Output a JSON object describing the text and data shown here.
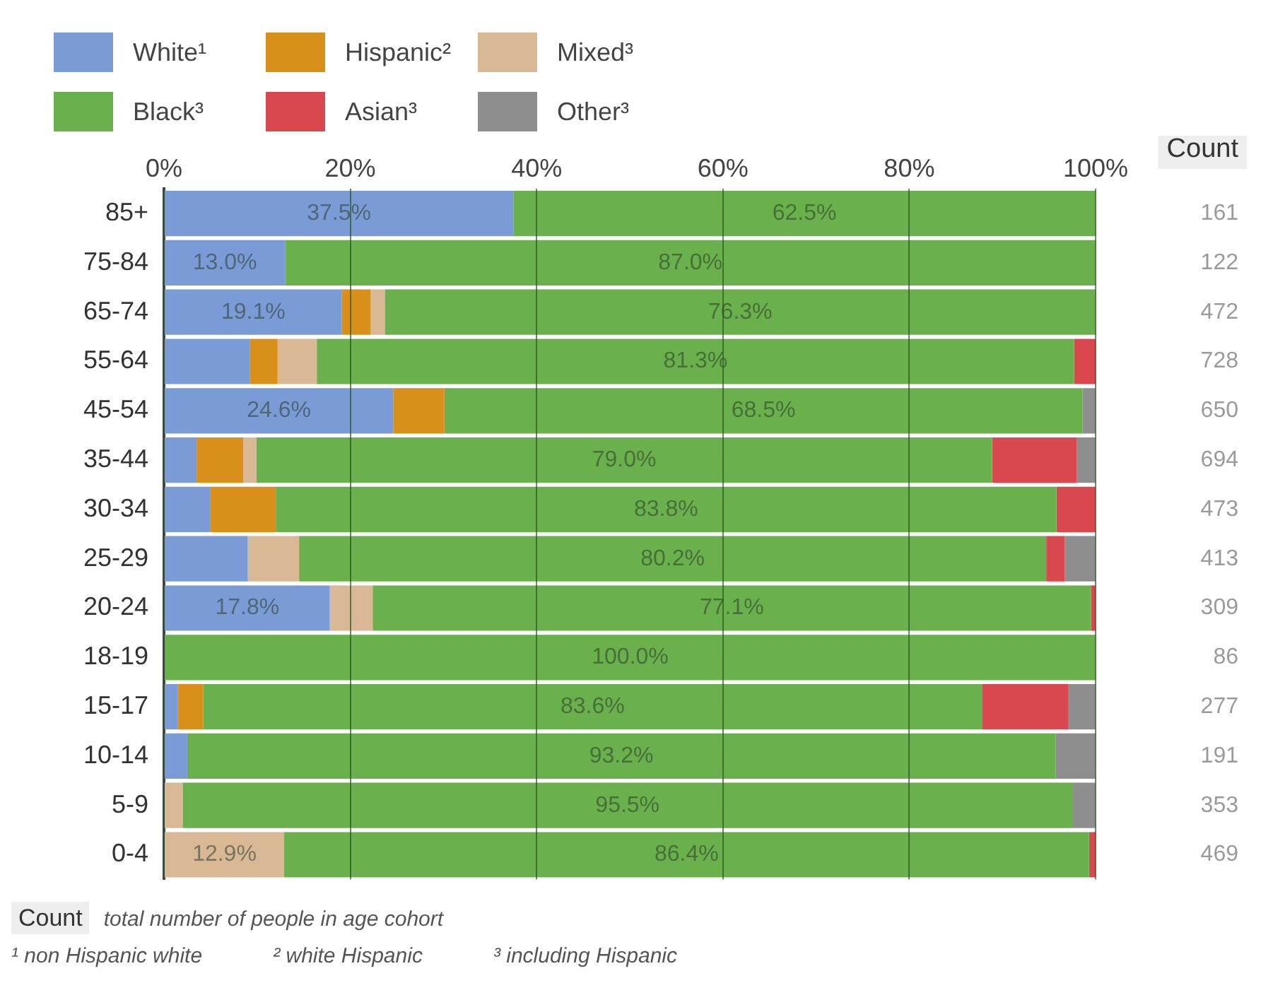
{
  "chart_data": {
    "type": "bar",
    "orientation": "horizontal",
    "stacked": true,
    "legend": "top left",
    "grid": "x",
    "categories": [
      "85+",
      "75-84",
      "65-74",
      "55-64",
      "45-54",
      "35-44",
      "30-34",
      "25-29",
      "20-24",
      "18-19",
      "15-17",
      "10-14",
      "5-9",
      "0-4"
    ],
    "xlim": [
      0,
      100
    ],
    "xticks": [
      {
        "value": 0,
        "label": "0%"
      },
      {
        "value": 20,
        "label": "20%"
      },
      {
        "value": 40,
        "label": "40%"
      },
      {
        "value": 60,
        "label": "60%"
      },
      {
        "value": 80,
        "label": "80%"
      },
      {
        "value": 100,
        "label": "100%"
      }
    ],
    "series": [
      {
        "name": "White¹",
        "color": "#7b9bd6",
        "values": [
          37.5,
          13.0,
          19.1,
          9.2,
          24.6,
          3.5,
          5.0,
          9.0,
          17.8,
          null,
          1.5,
          2.5,
          null,
          null
        ],
        "value_labels": [
          "37.5%",
          "13.0%",
          "19.1%",
          null,
          "24.6%",
          null,
          null,
          null,
          "17.8%",
          null,
          null,
          null,
          null,
          null
        ]
      },
      {
        "name": "Hispanic²",
        "color": "#d9901a",
        "values": [
          null,
          null,
          3.1,
          3.0,
          5.5,
          5.0,
          7.0,
          null,
          null,
          null,
          2.7,
          null,
          null,
          null
        ]
      },
      {
        "name": "Mixed³",
        "color": "#d9b896",
        "values": [
          null,
          null,
          1.5,
          4.2,
          null,
          1.4,
          null,
          5.5,
          4.6,
          null,
          null,
          null,
          2.0,
          12.9
        ],
        "value_labels": [
          null,
          null,
          null,
          null,
          null,
          null,
          null,
          null,
          null,
          null,
          null,
          null,
          null,
          "12.9%"
        ]
      },
      {
        "name": "Black³",
        "color": "#6ab04c",
        "values": [
          62.5,
          87.0,
          76.3,
          81.3,
          68.5,
          79.0,
          83.8,
          80.2,
          77.1,
          100.0,
          83.6,
          93.2,
          95.5,
          86.4
        ],
        "value_labels": [
          "62.5%",
          "87.0%",
          "76.3%",
          "81.3%",
          "68.5%",
          "79.0%",
          "83.8%",
          "80.2%",
          "77.1%",
          "100.0%",
          "83.6%",
          "93.2%",
          "95.5%",
          "86.4%"
        ]
      },
      {
        "name": "Asian³",
        "color": "#d9474f",
        "values": [
          null,
          null,
          null,
          2.3,
          null,
          9.1,
          4.2,
          2.0,
          0.5,
          null,
          9.3,
          null,
          null,
          0.7
        ]
      },
      {
        "name": "Other³",
        "color": "#8e8e8e",
        "values": [
          null,
          null,
          null,
          null,
          1.4,
          2.0,
          null,
          3.3,
          null,
          null,
          2.9,
          4.3,
          2.5,
          null
        ]
      }
    ],
    "annotations": [
      "Count",
      "161",
      "122",
      "472",
      "728",
      "650",
      "694",
      "473",
      "413",
      "309",
      "86",
      "277",
      "191",
      "353",
      "469",
      "Count",
      "total number of people in age cohort",
      "¹ non Hispanic white",
      "² white Hispanic",
      "³ including Hispanic"
    ]
  }
}
